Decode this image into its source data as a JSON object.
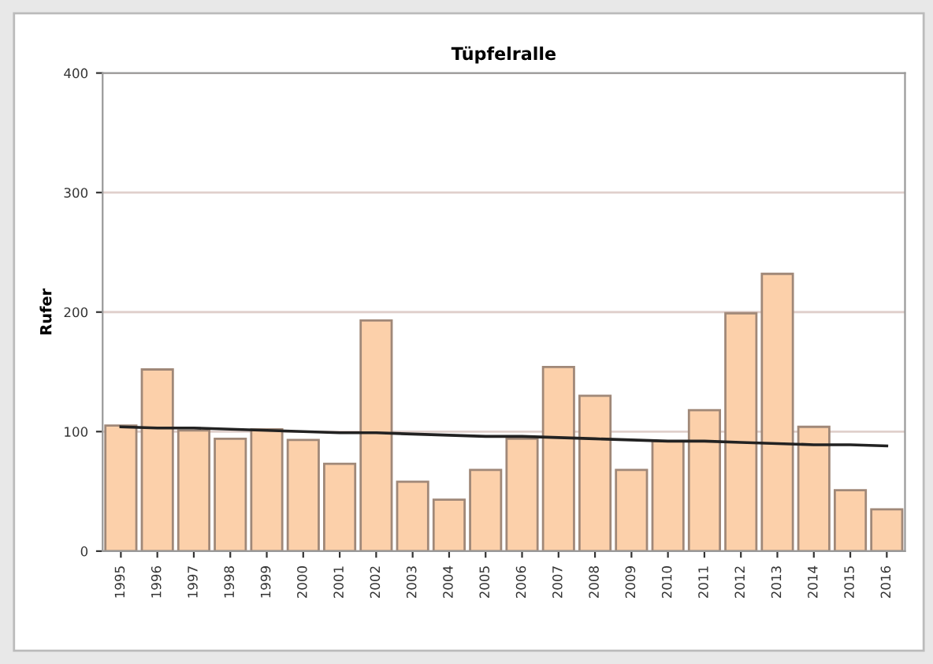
{
  "chart_data": {
    "type": "bar",
    "title": "Tüpfelralle",
    "ylabel": "Rufer",
    "categories": [
      "1995",
      "1996",
      "1997",
      "1998",
      "1999",
      "2000",
      "2001",
      "2002",
      "2003",
      "2004",
      "2005",
      "2006",
      "2007",
      "2008",
      "2009",
      "2010",
      "2011",
      "2012",
      "2013",
      "2014",
      "2015",
      "2016"
    ],
    "series": [
      {
        "color": "#fcd0aa",
        "values": [
          105,
          152,
          101,
          94,
          102,
          93,
          73,
          193,
          58,
          43,
          68,
          94,
          154,
          130,
          68,
          92,
          118,
          199,
          232,
          104,
          51,
          35
        ]
      },
      {
        "type": "line",
        "color": "#222222",
        "values": [
          104,
          103,
          103,
          102,
          101,
          100,
          99,
          99,
          98,
          97,
          96,
          96,
          95,
          94,
          93,
          92,
          92,
          91,
          90,
          89,
          89,
          88
        ]
      }
    ],
    "ylim": [
      0,
      400
    ],
    "yticks": [
      0,
      100,
      200,
      300,
      400
    ],
    "grid": "y",
    "legend": false
  }
}
